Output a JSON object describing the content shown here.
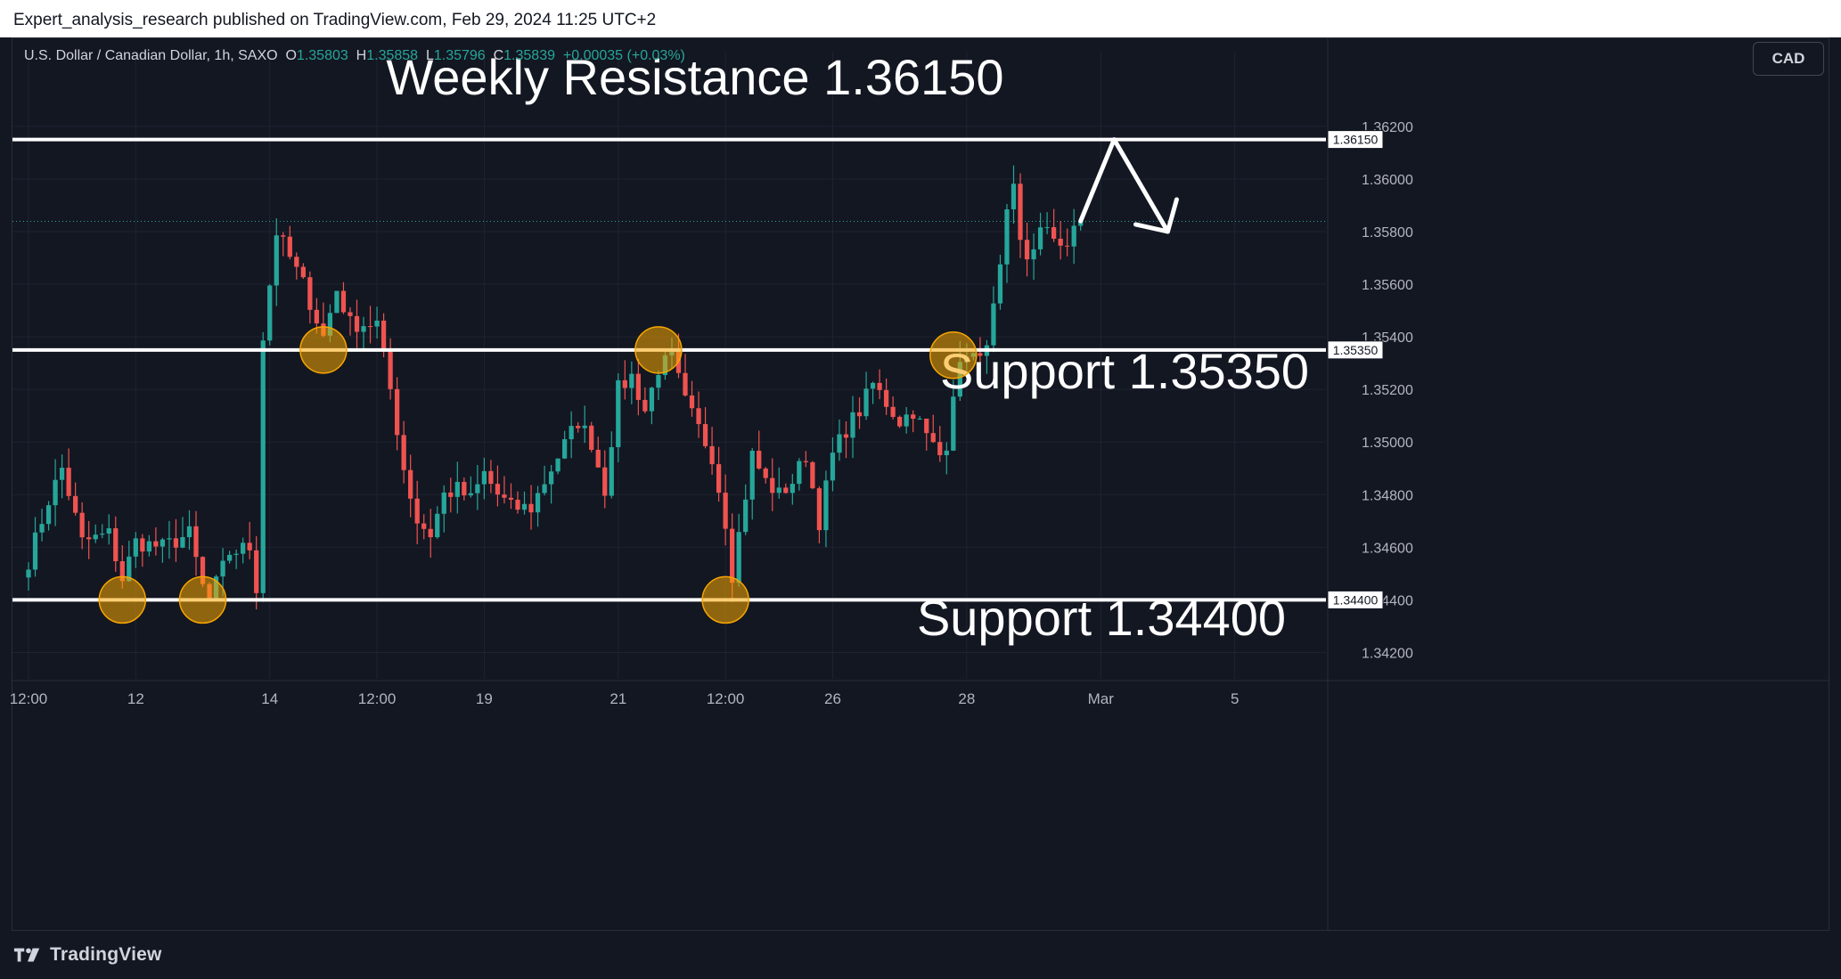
{
  "publisher_line": "Expert_analysis_research published on TradingView.com, Feb 29, 2024 11:25 UTC+2",
  "symbol": {
    "name": "U.S. Dollar / Canadian Dollar, 1h, SAXO",
    "open_label": "O",
    "open": "1.35803",
    "high_label": "H",
    "high": "1.35858",
    "low_label": "L",
    "low": "1.35796",
    "close_label": "C",
    "close": "1.35839",
    "change": "+0.00035 (+0.03%)"
  },
  "currency_button": "CAD",
  "footer_brand": "TradingView",
  "colors": {
    "background": "#131722",
    "bull": "#26a69a",
    "bear": "#ef5350",
    "level_line": "#ffffff",
    "circle_fill": "#f7a600",
    "circle_stroke": "#f7a600"
  },
  "chart_data": {
    "type": "candlestick",
    "ylim": [
      1.341,
      1.3645
    ],
    "y_ticks": [
      "1.34200",
      "1.34400",
      "1.34600",
      "1.34800",
      "1.35000",
      "1.35200",
      "1.35400",
      "1.35600",
      "1.35800",
      "1.36000",
      "1.36200"
    ],
    "y_tick_values": [
      1.342,
      1.344,
      1.346,
      1.348,
      1.35,
      1.352,
      1.354,
      1.356,
      1.358,
      1.36,
      1.362
    ],
    "x_ticks": [
      "12:00",
      "12",
      "14",
      "12:00",
      "19",
      "21",
      "12:00",
      "26",
      "28",
      "Mar",
      "5"
    ],
    "x_tick_index": [
      0,
      16,
      36,
      52,
      68,
      88,
      104,
      120,
      140,
      160,
      180
    ],
    "bar_count": 196,
    "price_path": [
      {
        "i": 0,
        "p": 1.3455
      },
      {
        "i": 3,
        "p": 1.3478
      },
      {
        "i": 5,
        "p": 1.349
      },
      {
        "i": 8,
        "p": 1.3462
      },
      {
        "i": 12,
        "p": 1.3465
      },
      {
        "i": 14,
        "p": 1.3448
      },
      {
        "i": 15,
        "p": 1.3455
      },
      {
        "i": 16,
        "p": 1.3462
      },
      {
        "i": 20,
        "p": 1.346
      },
      {
        "i": 24,
        "p": 1.3465
      },
      {
        "i": 26,
        "p": 1.3445
      },
      {
        "i": 27,
        "p": 1.344
      },
      {
        "i": 30,
        "p": 1.3458
      },
      {
        "i": 33,
        "p": 1.346
      },
      {
        "i": 34,
        "p": 1.3445
      },
      {
        "i": 35,
        "p": 1.354
      },
      {
        "i": 37,
        "p": 1.358
      },
      {
        "i": 38,
        "p": 1.3575
      },
      {
        "i": 41,
        "p": 1.356
      },
      {
        "i": 44,
        "p": 1.354
      },
      {
        "i": 46,
        "p": 1.3558
      },
      {
        "i": 48,
        "p": 1.3545
      },
      {
        "i": 52,
        "p": 1.3545
      },
      {
        "i": 54,
        "p": 1.352
      },
      {
        "i": 56,
        "p": 1.349
      },
      {
        "i": 58,
        "p": 1.347
      },
      {
        "i": 60,
        "p": 1.3465
      },
      {
        "i": 62,
        "p": 1.348
      },
      {
        "i": 64,
        "p": 1.3482
      },
      {
        "i": 66,
        "p": 1.3478
      },
      {
        "i": 68,
        "p": 1.3488
      },
      {
        "i": 70,
        "p": 1.348
      },
      {
        "i": 72,
        "p": 1.3475
      },
      {
        "i": 75,
        "p": 1.3475
      },
      {
        "i": 78,
        "p": 1.349
      },
      {
        "i": 82,
        "p": 1.3508
      },
      {
        "i": 84,
        "p": 1.35
      },
      {
        "i": 86,
        "p": 1.3482
      },
      {
        "i": 88,
        "p": 1.352
      },
      {
        "i": 90,
        "p": 1.3525
      },
      {
        "i": 92,
        "p": 1.3512
      },
      {
        "i": 94,
        "p": 1.3528
      },
      {
        "i": 96,
        "p": 1.3532
      },
      {
        "i": 98,
        "p": 1.3515
      },
      {
        "i": 100,
        "p": 1.3505
      },
      {
        "i": 102,
        "p": 1.3495
      },
      {
        "i": 104,
        "p": 1.347
      },
      {
        "i": 105,
        "p": 1.345
      },
      {
        "i": 106,
        "p": 1.3465
      },
      {
        "i": 108,
        "p": 1.3495
      },
      {
        "i": 110,
        "p": 1.3485
      },
      {
        "i": 112,
        "p": 1.348
      },
      {
        "i": 114,
        "p": 1.3485
      },
      {
        "i": 116,
        "p": 1.3495
      },
      {
        "i": 118,
        "p": 1.347
      },
      {
        "i": 120,
        "p": 1.3495
      },
      {
        "i": 122,
        "p": 1.3505
      },
      {
        "i": 124,
        "p": 1.3512
      },
      {
        "i": 126,
        "p": 1.3522
      },
      {
        "i": 128,
        "p": 1.3515
      },
      {
        "i": 130,
        "p": 1.3508
      },
      {
        "i": 132,
        "p": 1.3512
      },
      {
        "i": 134,
        "p": 1.3502
      },
      {
        "i": 136,
        "p": 1.3495
      },
      {
        "i": 137,
        "p": 1.35
      },
      {
        "i": 138,
        "p": 1.352
      },
      {
        "i": 140,
        "p": 1.3535
      },
      {
        "i": 142,
        "p": 1.353
      },
      {
        "i": 144,
        "p": 1.355
      },
      {
        "i": 145,
        "p": 1.3565
      },
      {
        "i": 146,
        "p": 1.3585
      },
      {
        "i": 147,
        "p": 1.3595
      },
      {
        "i": 148,
        "p": 1.3575
      },
      {
        "i": 149,
        "p": 1.357
      },
      {
        "i": 151,
        "p": 1.358
      },
      {
        "i": 153,
        "p": 1.3578
      },
      {
        "i": 155,
        "p": 1.3575
      },
      {
        "i": 157,
        "p": 1.3584
      }
    ],
    "current_price": 1.35839,
    "levels": [
      {
        "label": "Weekly Resistance 1.36150",
        "value": 1.3615,
        "tag": "1.36150"
      },
      {
        "label": "Support 1.35350",
        "value": 1.3535,
        "tag": "1.35350"
      },
      {
        "label": "Support 1.34400",
        "value": 1.344,
        "tag": "1.34400"
      }
    ],
    "touch_points": [
      {
        "i": 14,
        "price": 1.344
      },
      {
        "i": 26,
        "price": 1.344
      },
      {
        "i": 44,
        "price": 1.3535
      },
      {
        "i": 94,
        "price": 1.3535
      },
      {
        "i": 104,
        "price": 1.344
      },
      {
        "i": 138,
        "price": 1.3533
      }
    ],
    "projection": [
      {
        "i": 157,
        "p": 1.3584
      },
      {
        "i": 162,
        "p": 1.3615
      },
      {
        "i": 170,
        "p": 1.358
      }
    ]
  }
}
